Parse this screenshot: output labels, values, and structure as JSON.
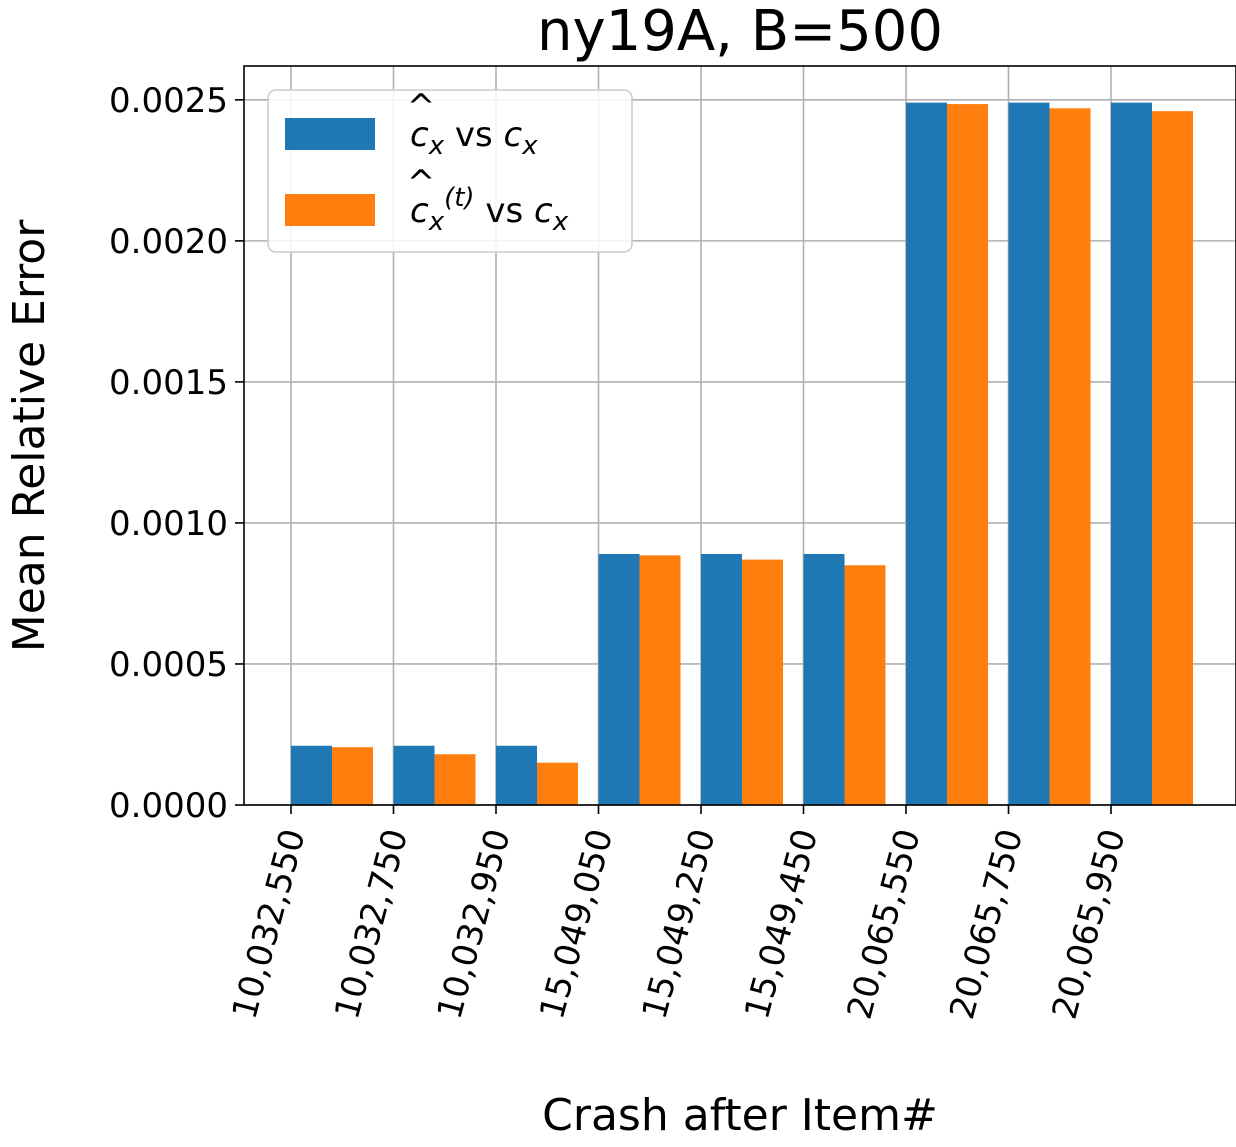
{
  "chart_data": {
    "type": "bar",
    "title": "ny19A, B=500",
    "xlabel": "Crash after Item#",
    "ylabel": "Mean Relative Error",
    "categories": [
      "10,032,550",
      "10,032,750",
      "10,032,950",
      "15,049,050",
      "15,049,250",
      "15,049,450",
      "20,065,550",
      "20,065,750",
      "20,065,950"
    ],
    "ylim": [
      0,
      0.00262
    ],
    "yticks": [
      "0.0000",
      "0.0005",
      "0.0010",
      "0.0015",
      "0.0020",
      "0.0025"
    ],
    "ytick_values": [
      0,
      0.0005,
      0.001,
      0.0015,
      0.002,
      0.0025
    ],
    "grid": true,
    "legend_position": "upper-left",
    "series": [
      {
        "name": "c_x-hat vs c_x",
        "legend_parts": {
          "base": "c",
          "sub": "x",
          "mid": " vs ",
          "base2": "c",
          "sub2": "x"
        },
        "color": "#1f77b4",
        "values": [
          0.00021,
          0.00021,
          0.00021,
          0.00089,
          0.00089,
          0.00089,
          0.00249,
          0.00249,
          0.00249
        ]
      },
      {
        "name": "c_x-hat^(t) vs c_x",
        "legend_parts": {
          "base": "c",
          "sub": "x",
          "sup": "(t)",
          "mid": " vs ",
          "base2": "c",
          "sub2": "x"
        },
        "color": "#ff7f0e",
        "values": [
          0.000205,
          0.00018,
          0.00015,
          0.000885,
          0.00087,
          0.00085,
          0.002485,
          0.00247,
          0.00246
        ]
      }
    ]
  }
}
